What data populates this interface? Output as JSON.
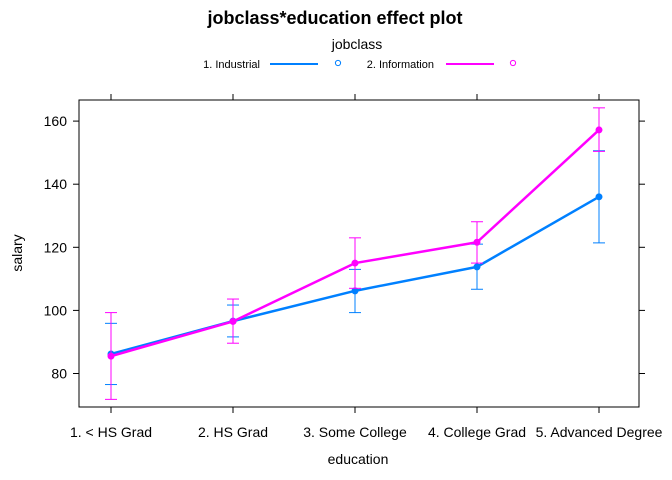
{
  "chart_data": {
    "type": "line",
    "title": "jobclass*education effect plot",
    "xlabel": "education",
    "ylabel": "salary",
    "categories": [
      "1. < HS Grad",
      "2. HS Grad",
      "3. Some College",
      "4. College Grad",
      "5. Advanced Degree"
    ],
    "ylim": [
      69,
      166
    ],
    "yticks": [
      80,
      100,
      120,
      140,
      160
    ],
    "legend": {
      "title": "jobclass",
      "placement": "top"
    },
    "series": [
      {
        "name": "1. Industrial",
        "color": "#0080ff",
        "values": [
          86.2,
          96.6,
          106.2,
          113.8,
          136.0
        ],
        "lower": [
          76.5,
          91.6,
          99.3,
          106.7,
          121.4
        ],
        "upper": [
          95.9,
          101.7,
          113.0,
          121.0,
          150.6
        ]
      },
      {
        "name": "2. Information",
        "color": "#ff00ff",
        "values": [
          85.5,
          96.5,
          115.0,
          121.6,
          157.2
        ],
        "lower": [
          71.8,
          89.6,
          107.0,
          115.0,
          150.4
        ],
        "upper": [
          99.3,
          103.6,
          123.0,
          128.1,
          164.2
        ]
      }
    ],
    "grid": false
  }
}
